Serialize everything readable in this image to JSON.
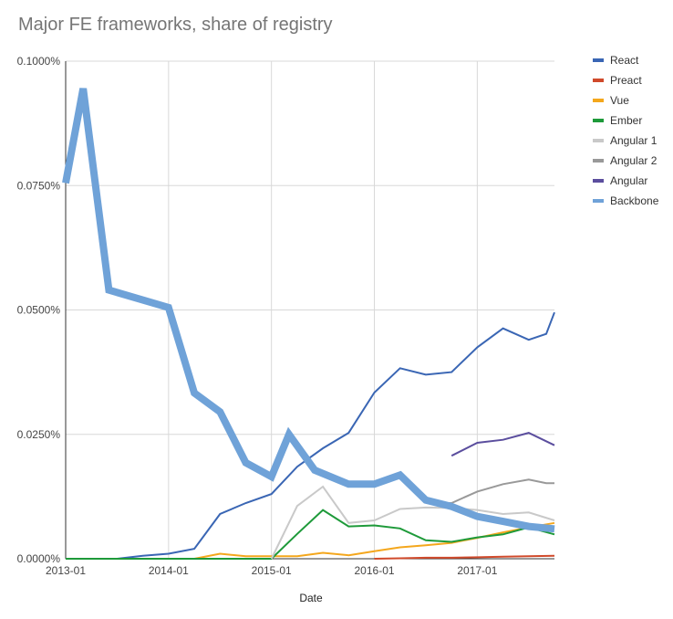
{
  "chart_data": {
    "type": "line",
    "title": "Major FE frameworks, share of registry",
    "xlabel": "Date",
    "ylabel": "",
    "ylim": [
      0,
      0.1
    ],
    "y_unit": "percent",
    "y_ticks": [
      0,
      0.025,
      0.05,
      0.075,
      0.1
    ],
    "y_tick_labels": [
      "0.0000%",
      "0.0250%",
      "0.0500%",
      "0.0750%",
      "0.1000%"
    ],
    "x_range": [
      2013.0,
      2017.75
    ],
    "x_ticks": [
      2013.0,
      2014.0,
      2015.0,
      2016.0,
      2017.0
    ],
    "x_tick_labels": [
      "2013-01",
      "2014-01",
      "2015-01",
      "2016-01",
      "2017-01"
    ],
    "grid": true,
    "legend_position": "right",
    "series": [
      {
        "name": "React",
        "color": "#3a66b4",
        "width": "thin",
        "x": [
          2013.0,
          2013.25,
          2013.5,
          2013.75,
          2014.0,
          2014.25,
          2014.5,
          2014.75,
          2015.0,
          2015.25,
          2015.5,
          2015.75,
          2016.0,
          2016.25,
          2016.5,
          2016.75,
          2017.0,
          2017.25,
          2017.5,
          2017.67,
          2017.75
        ],
        "y": [
          0,
          0,
          0,
          0.0006,
          0.001,
          0.002,
          0.009,
          0.0112,
          0.013,
          0.0185,
          0.0222,
          0.0253,
          0.0334,
          0.0383,
          0.037,
          0.0375,
          0.0425,
          0.0463,
          0.044,
          0.0452,
          0.0495
        ]
      },
      {
        "name": "Preact",
        "color": "#d04a2b",
        "width": "thin",
        "x": [
          2016.0,
          2016.25,
          2016.5,
          2016.75,
          2017.0,
          2017.25,
          2017.5,
          2017.75
        ],
        "y": [
          0,
          0.0001,
          0.0002,
          0.0002,
          0.0003,
          0.0004,
          0.0005,
          0.0006
        ]
      },
      {
        "name": "Vue",
        "color": "#f4a71d",
        "width": "thin",
        "x": [
          2013.0,
          2013.25,
          2013.5,
          2013.75,
          2014.0,
          2014.25,
          2014.5,
          2014.75,
          2015.0,
          2015.25,
          2015.5,
          2015.75,
          2016.0,
          2016.25,
          2016.5,
          2016.75,
          2017.0,
          2017.25,
          2017.5,
          2017.75
        ],
        "y": [
          0,
          0,
          0,
          0,
          0,
          0,
          0.001,
          0.0005,
          0.0005,
          0.0005,
          0.0012,
          0.0007,
          0.0015,
          0.0023,
          0.0027,
          0.0032,
          0.0042,
          0.0053,
          0.0063,
          0.0072
        ]
      },
      {
        "name": "Ember",
        "color": "#1e9a3a",
        "width": "thin",
        "x": [
          2013.0,
          2013.25,
          2013.5,
          2013.75,
          2014.0,
          2014.25,
          2014.5,
          2014.75,
          2015.0,
          2015.25,
          2015.5,
          2015.75,
          2016.0,
          2016.25,
          2016.5,
          2016.75,
          2017.0,
          2017.25,
          2017.5,
          2017.75
        ],
        "y": [
          0,
          0,
          0,
          0,
          0,
          0,
          0,
          0,
          0,
          0.005,
          0.0098,
          0.0065,
          0.0067,
          0.0061,
          0.0037,
          0.0034,
          0.0043,
          0.0049,
          0.0063,
          0.0049
        ]
      },
      {
        "name": "Angular 1",
        "color": "#c9c9c9",
        "width": "thin",
        "x": [
          2015.0,
          2015.25,
          2015.5,
          2015.75,
          2016.0,
          2016.25,
          2016.5,
          2016.75,
          2017.0,
          2017.25,
          2017.5,
          2017.75
        ],
        "y": [
          0,
          0.0106,
          0.0145,
          0.0072,
          0.0077,
          0.01,
          0.0103,
          0.0102,
          0.0098,
          0.009,
          0.0093,
          0.0077
        ]
      },
      {
        "name": "Angular 2",
        "color": "#999999",
        "width": "thin",
        "x": [
          2016.5,
          2016.75,
          2017.0,
          2017.25,
          2017.5,
          2017.67,
          2017.75
        ],
        "y": [
          0.0112,
          0.0112,
          0.0135,
          0.015,
          0.0159,
          0.0152,
          0.0152
        ]
      },
      {
        "name": "Angular",
        "color": "#5b4e9e",
        "width": "thin",
        "x": [
          2016.75,
          2017.0,
          2017.25,
          2017.5,
          2017.75
        ],
        "y": [
          0.0207,
          0.0233,
          0.0239,
          0.0253,
          0.0228
        ]
      },
      {
        "name": "Backbone",
        "color": "#6fa2d8",
        "width": "thick",
        "x": [
          2013.0,
          2013.17,
          2013.42,
          2014.0,
          2014.25,
          2014.5,
          2014.75,
          2015.0,
          2015.17,
          2015.42,
          2015.75,
          2016.0,
          2016.25,
          2016.5,
          2016.75,
          2017.0,
          2017.25,
          2017.5,
          2017.75
        ],
        "y": [
          0.0755,
          0.0945,
          0.054,
          0.0505,
          0.0333,
          0.0295,
          0.0193,
          0.0165,
          0.025,
          0.0178,
          0.015,
          0.015,
          0.0168,
          0.0118,
          0.0105,
          0.0085,
          0.0075,
          0.0065,
          0.006
        ]
      }
    ]
  }
}
